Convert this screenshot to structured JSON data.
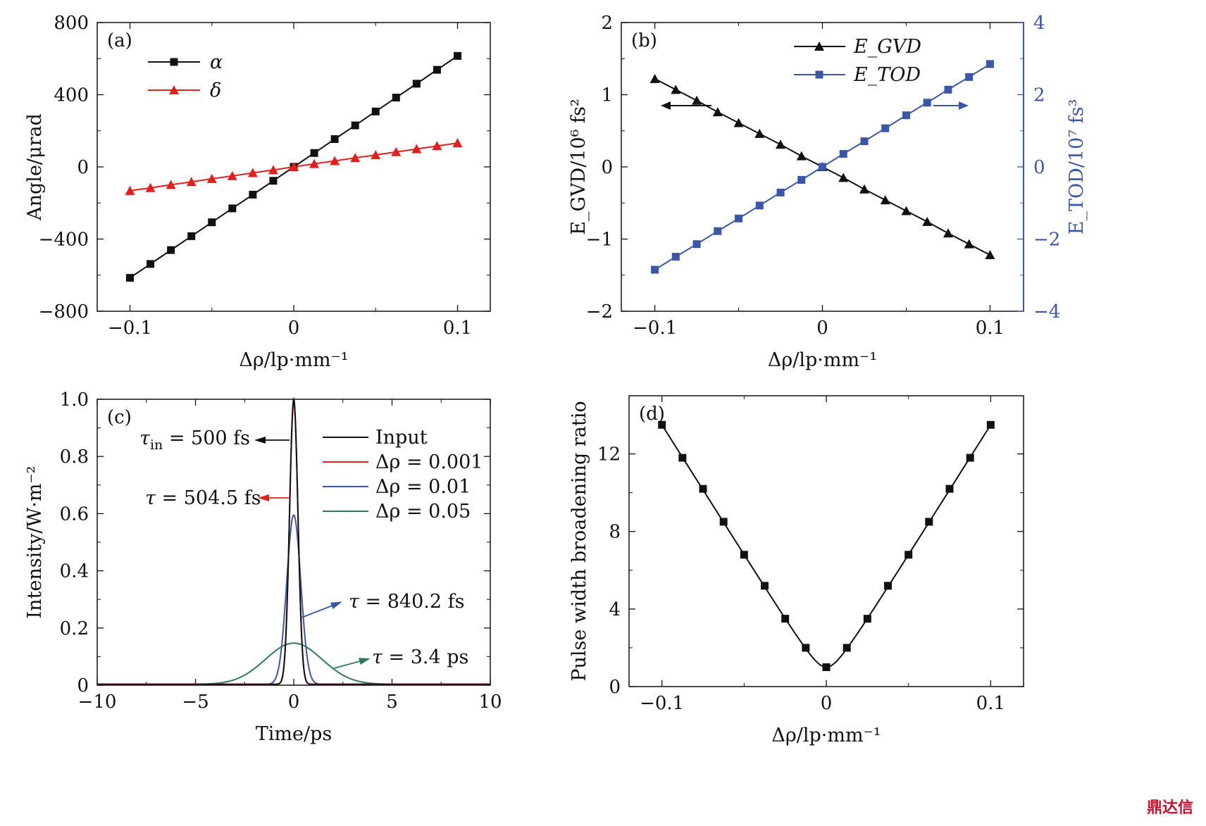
{
  "watermark": "鼎达信",
  "colors": {
    "black": "#111111",
    "red": "#e02020",
    "blue": "#3a57a7",
    "green": "#2f7a5f",
    "darkblue": "#2d4c9e"
  },
  "chart_data": [
    {
      "id": "a",
      "type": "line",
      "panel_label": "(a)",
      "xlabel": "Δρ/lp·mm⁻¹",
      "ylabel": "Angle/μrad",
      "xlim": [
        -0.12,
        0.12
      ],
      "ylim": [
        -800,
        800
      ],
      "xticks": [
        -0.1,
        0,
        0.1
      ],
      "xtick_labels": [
        "−0.1",
        "0",
        "0.1"
      ],
      "yticks": [
        -800,
        -400,
        0,
        400,
        800
      ],
      "ytick_labels": [
        "−800",
        "−400",
        "0",
        "400",
        "800"
      ],
      "legend_position": "top-left",
      "x": [
        -0.1,
        -0.0875,
        -0.075,
        -0.0625,
        -0.05,
        -0.0375,
        -0.025,
        -0.0125,
        0,
        0.0125,
        0.025,
        0.0375,
        0.05,
        0.0625,
        0.075,
        0.0875,
        0.1
      ],
      "series": [
        {
          "name": "α",
          "color": "#111111",
          "marker": "square",
          "values": [
            -615,
            -538,
            -461,
            -384,
            -307,
            -230,
            -154,
            -77,
            0,
            77,
            154,
            230,
            307,
            384,
            461,
            538,
            615
          ]
        },
        {
          "name": "δ",
          "color": "#e02020",
          "marker": "triangle",
          "values": [
            -132,
            -116,
            -99,
            -83,
            -66,
            -50,
            -33,
            -17,
            0,
            17,
            33,
            50,
            66,
            83,
            99,
            116,
            132
          ]
        }
      ]
    },
    {
      "id": "b",
      "type": "line",
      "panel_label": "(b)",
      "xlabel": "Δρ/lp·mm⁻¹",
      "ylabel": "E_GVD/10⁶ fs²",
      "y2label": "E_TOD/10⁷ fs³",
      "xlim": [
        -0.12,
        0.12
      ],
      "ylim": [
        -2,
        2
      ],
      "y2lim": [
        -4,
        4
      ],
      "xticks": [
        -0.1,
        0,
        0.1
      ],
      "xtick_labels": [
        "−0.1",
        "0",
        "0.1"
      ],
      "yticks": [
        -2,
        -1,
        0,
        1,
        2
      ],
      "ytick_labels": [
        "−2",
        "−1",
        "0",
        "1",
        "2"
      ],
      "y2ticks": [
        -4,
        -2,
        0,
        2,
        4
      ],
      "y2tick_labels": [
        "−4",
        "−2",
        "0",
        "2",
        "4"
      ],
      "legend_position": "top-center",
      "x": [
        -0.1,
        -0.0875,
        -0.075,
        -0.0625,
        -0.05,
        -0.0375,
        -0.025,
        -0.0125,
        0,
        0.0125,
        0.025,
        0.0375,
        0.05,
        0.0625,
        0.075,
        0.0875,
        0.1
      ],
      "series": [
        {
          "name": "E_GVD",
          "axis": "left",
          "color": "#111111",
          "marker": "triangle",
          "values": [
            1.22,
            1.07,
            0.92,
            0.76,
            0.61,
            0.46,
            0.31,
            0.15,
            0,
            -0.15,
            -0.31,
            -0.46,
            -0.61,
            -0.76,
            -0.92,
            -1.07,
            -1.22
          ]
        },
        {
          "name": "E_TOD",
          "axis": "right",
          "color": "#3a57a7",
          "marker": "square",
          "values": [
            -2.85,
            -2.49,
            -2.14,
            -1.78,
            -1.43,
            -1.07,
            -0.71,
            -0.36,
            0,
            0.36,
            0.71,
            1.07,
            1.43,
            1.78,
            2.14,
            2.49,
            2.85
          ]
        }
      ]
    },
    {
      "id": "c",
      "type": "line",
      "panel_label": "(c)",
      "xlabel": "Time/ps",
      "ylabel": "Intensity/W·m⁻²",
      "xlim": [
        -10,
        10
      ],
      "ylim": [
        0,
        1.0
      ],
      "xticks": [
        -10,
        -5,
        0,
        5,
        10
      ],
      "xtick_labels": [
        "−10",
        "−5",
        "0",
        "5",
        "10"
      ],
      "yticks": [
        0,
        0.2,
        0.4,
        0.6,
        0.8,
        1.0
      ],
      "ytick_labels": [
        "0",
        "0.2",
        "0.4",
        "0.6",
        "0.8",
        "1.0"
      ],
      "legend_position": "top-right",
      "series": [
        {
          "name": "Input",
          "color": "#111111",
          "peak": 1.0,
          "fwhm_ps": 0.5
        },
        {
          "name": "Δρ = 0.001",
          "color": "#e02020",
          "peak": 0.99,
          "fwhm_ps": 0.5045
        },
        {
          "name": "Δρ = 0.01",
          "color": "#3a57a7",
          "peak": 0.595,
          "fwhm_ps": 0.8402
        },
        {
          "name": "Δρ = 0.05",
          "color": "#2f7a5f",
          "peak": 0.147,
          "fwhm_ps": 3.4
        }
      ],
      "annotations": [
        {
          "text_main": "τ",
          "text_sub": "in",
          "text_rest": " = 500 fs",
          "color": "#111111"
        },
        {
          "text_main": "τ",
          "text_sub": "",
          "text_rest": " = 504.5 fs",
          "color": "#e02020"
        },
        {
          "text_main": "τ",
          "text_sub": "",
          "text_rest": " = 840.2 fs",
          "color": "#3a57a7"
        },
        {
          "text_main": "τ",
          "text_sub": "",
          "text_rest": " = 3.4 ps",
          "color": "#2f7a5f"
        }
      ]
    },
    {
      "id": "d",
      "type": "line",
      "panel_label": "(d)",
      "xlabel": "Δρ/lp·mm⁻¹",
      "ylabel": "Pulse width broadening ratio",
      "xlim": [
        -0.12,
        0.12
      ],
      "ylim": [
        0,
        15
      ],
      "xticks": [
        -0.1,
        0,
        0.1
      ],
      "xtick_labels": [
        "−0.1",
        "0",
        "0.1"
      ],
      "yticks": [
        0,
        4,
        8,
        12
      ],
      "ytick_labels": [
        "0",
        "4",
        "8",
        "12"
      ],
      "x": [
        -0.1,
        -0.0875,
        -0.075,
        -0.0625,
        -0.05,
        -0.0375,
        -0.025,
        -0.0125,
        0,
        0.0125,
        0.025,
        0.0375,
        0.05,
        0.0625,
        0.075,
        0.0875,
        0.1
      ],
      "series": [
        {
          "name": "",
          "color": "#111111",
          "marker": "square",
          "values": [
            13.5,
            11.8,
            10.2,
            8.5,
            6.8,
            5.2,
            3.5,
            2.0,
            1.0,
            2.0,
            3.5,
            5.2,
            6.8,
            8.5,
            10.2,
            11.8,
            13.5
          ]
        }
      ]
    }
  ]
}
